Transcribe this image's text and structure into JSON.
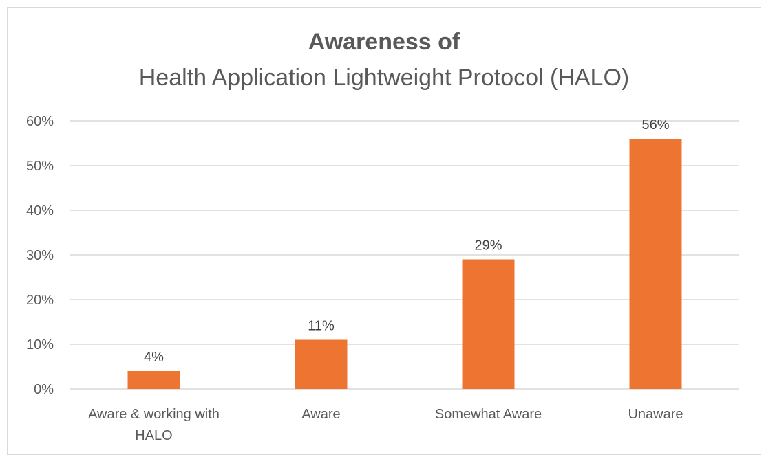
{
  "chart_data": {
    "type": "bar",
    "title": "Awareness of",
    "subtitle": "Health Application Lightweight Protocol (HALO)",
    "xlabel": "",
    "ylabel": "",
    "categories": [
      [
        "Aware & working with",
        "HALO"
      ],
      [
        "Aware"
      ],
      [
        "Somewhat Aware"
      ],
      [
        "Unaware"
      ]
    ],
    "values": [
      4,
      11,
      29,
      56
    ],
    "data_labels": [
      "4%",
      "11%",
      "29%",
      "56%"
    ],
    "ylim": [
      0,
      60
    ],
    "yticks": [
      0,
      10,
      20,
      30,
      40,
      50,
      60
    ],
    "ytick_labels": [
      "0%",
      "10%",
      "20%",
      "30%",
      "40%",
      "50%",
      "60%"
    ],
    "grid": true,
    "legend": "none",
    "bar_color": "#ED7431",
    "grid_color": "#D9D9D9"
  }
}
